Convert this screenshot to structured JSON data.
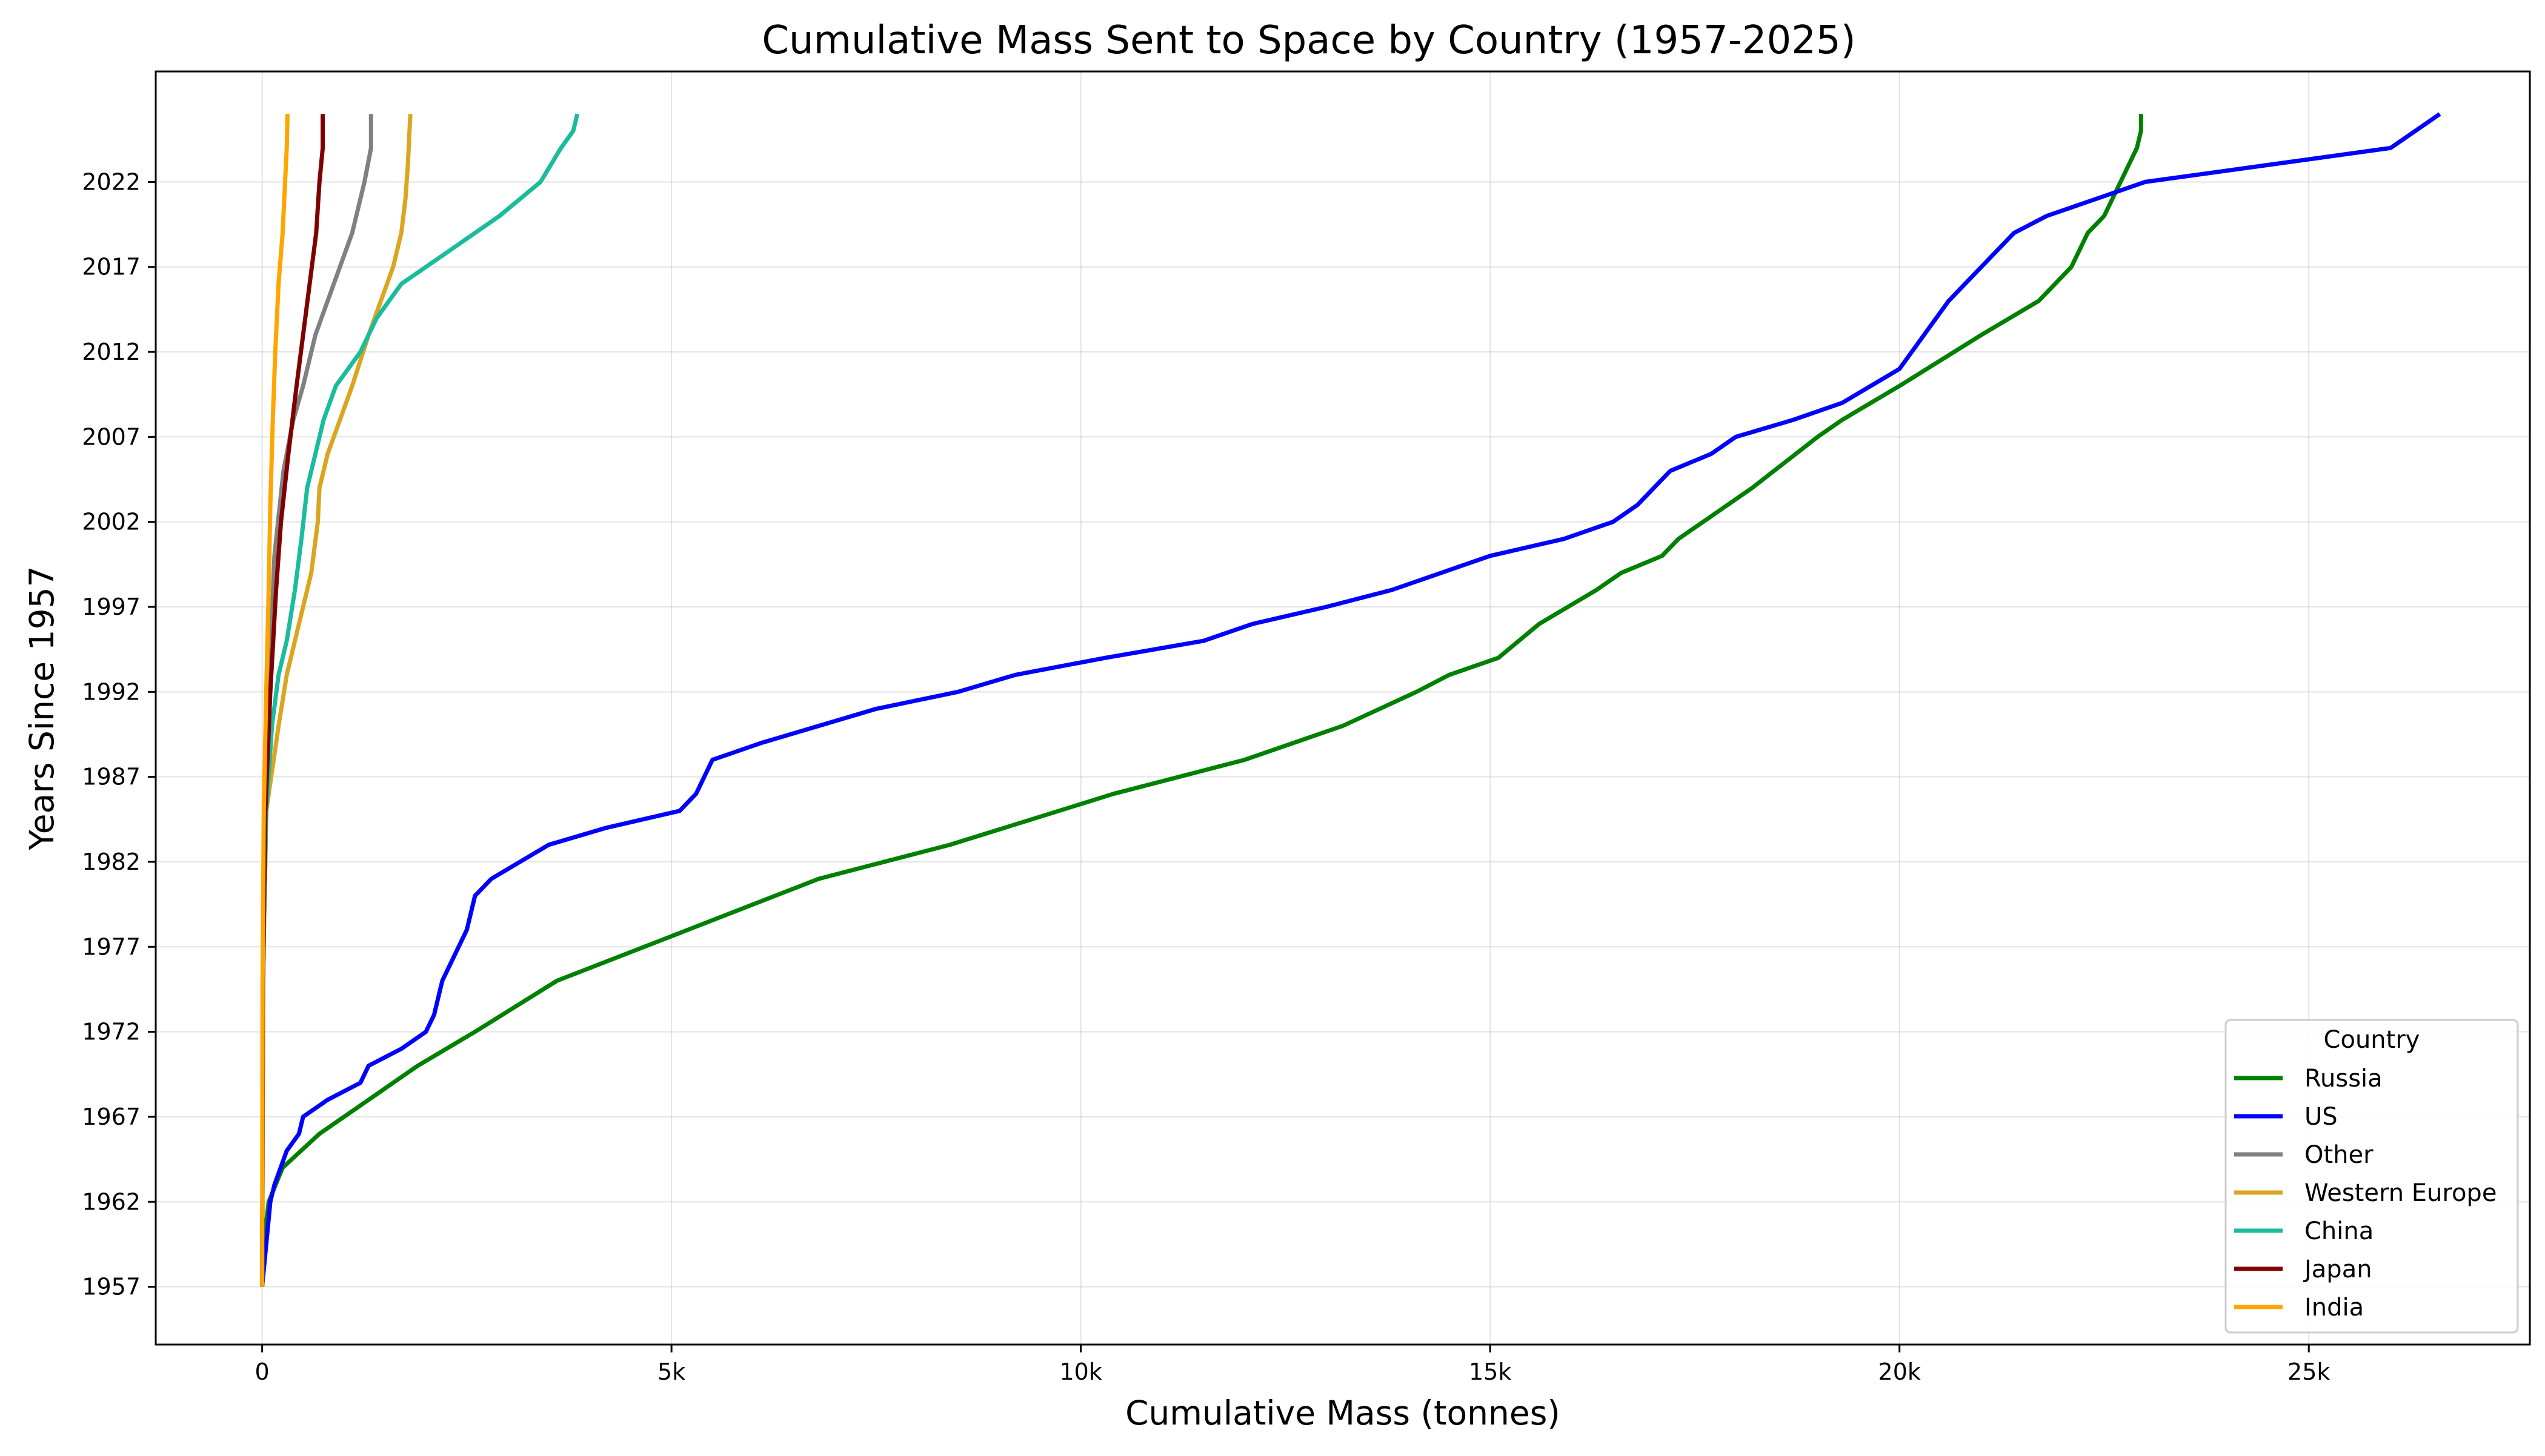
{
  "chart_data": {
    "type": "line",
    "title": "Cumulative Mass Sent to Space by Country (1957-2025)",
    "xlabel": "Cumulative Mass (tonnes)",
    "ylabel": "Years Since 1957",
    "xlim": [
      -1300,
      27700
    ],
    "ylim": [
      1953.6,
      2028.5
    ],
    "x_ticks": [
      {
        "value": 0,
        "label": "0"
      },
      {
        "value": 5000,
        "label": "5k"
      },
      {
        "value": 10000,
        "label": "10k"
      },
      {
        "value": 15000,
        "label": "15k"
      },
      {
        "value": 20000,
        "label": "20k"
      },
      {
        "value": 25000,
        "label": "25k"
      }
    ],
    "y_ticks": [
      {
        "value": 1957,
        "label": "1957"
      },
      {
        "value": 1962,
        "label": "1962"
      },
      {
        "value": 1967,
        "label": "1967"
      },
      {
        "value": 1972,
        "label": "1972"
      },
      {
        "value": 1977,
        "label": "1977"
      },
      {
        "value": 1982,
        "label": "1982"
      },
      {
        "value": 1987,
        "label": "1987"
      },
      {
        "value": 1992,
        "label": "1992"
      },
      {
        "value": 1997,
        "label": "1997"
      },
      {
        "value": 2002,
        "label": "2002"
      },
      {
        "value": 2007,
        "label": "2007"
      },
      {
        "value": 2012,
        "label": "2012"
      },
      {
        "value": 2017,
        "label": "2017"
      },
      {
        "value": 2022,
        "label": "2022"
      }
    ],
    "grid": true,
    "legend": {
      "title": "Country",
      "position": "lower-right"
    },
    "series": [
      {
        "name": "Russia",
        "color": "#008000",
        "points": [
          [
            0,
            1957
          ],
          [
            30,
            1960
          ],
          [
            80,
            1962
          ],
          [
            250,
            1964
          ],
          [
            700,
            1966
          ],
          [
            1300,
            1968
          ],
          [
            1900,
            1970
          ],
          [
            2600,
            1972
          ],
          [
            3600,
            1975
          ],
          [
            5200,
            1978
          ],
          [
            6800,
            1981
          ],
          [
            8400,
            1983
          ],
          [
            10400,
            1986
          ],
          [
            12000,
            1988
          ],
          [
            13200,
            1990
          ],
          [
            14100,
            1992
          ],
          [
            14500,
            1993
          ],
          [
            15100,
            1994
          ],
          [
            15600,
            1996
          ],
          [
            16300,
            1998
          ],
          [
            16600,
            1999
          ],
          [
            17100,
            2000
          ],
          [
            17300,
            2001
          ],
          [
            17600,
            2002
          ],
          [
            18200,
            2004
          ],
          [
            19000,
            2007
          ],
          [
            19300,
            2008
          ],
          [
            20000,
            2010
          ],
          [
            21000,
            2013
          ],
          [
            21700,
            2015
          ],
          [
            21900,
            2016
          ],
          [
            22100,
            2017
          ],
          [
            22300,
            2019
          ],
          [
            22500,
            2020
          ],
          [
            22700,
            2022
          ],
          [
            22900,
            2024
          ],
          [
            22950,
            2025
          ],
          [
            22950,
            2026
          ]
        ]
      },
      {
        "name": "US",
        "color": "#0000ff",
        "points": [
          [
            0,
            1957
          ],
          [
            80,
            1961
          ],
          [
            100,
            1962
          ],
          [
            150,
            1963
          ],
          [
            300,
            1965
          ],
          [
            450,
            1966
          ],
          [
            500,
            1967
          ],
          [
            800,
            1968
          ],
          [
            1200,
            1969
          ],
          [
            1300,
            1970
          ],
          [
            1700,
            1971
          ],
          [
            2000,
            1972
          ],
          [
            2100,
            1973
          ],
          [
            2200,
            1975
          ],
          [
            2400,
            1977
          ],
          [
            2500,
            1978
          ],
          [
            2600,
            1980
          ],
          [
            2800,
            1981
          ],
          [
            3500,
            1983
          ],
          [
            4200,
            1984
          ],
          [
            5100,
            1985
          ],
          [
            5300,
            1986
          ],
          [
            5400,
            1987
          ],
          [
            5500,
            1988
          ],
          [
            6100,
            1989
          ],
          [
            6800,
            1990
          ],
          [
            7500,
            1991
          ],
          [
            8500,
            1992
          ],
          [
            9200,
            1993
          ],
          [
            10300,
            1994
          ],
          [
            11500,
            1995
          ],
          [
            12100,
            1996
          ],
          [
            13000,
            1997
          ],
          [
            13800,
            1998
          ],
          [
            14400,
            1999
          ],
          [
            15000,
            2000
          ],
          [
            15900,
            2001
          ],
          [
            16500,
            2002
          ],
          [
            16800,
            2003
          ],
          [
            17000,
            2004
          ],
          [
            17200,
            2005
          ],
          [
            17700,
            2006
          ],
          [
            18000,
            2007
          ],
          [
            18700,
            2008
          ],
          [
            19300,
            2009
          ],
          [
            20000,
            2011
          ],
          [
            20300,
            2013
          ],
          [
            20600,
            2015
          ],
          [
            21000,
            2017
          ],
          [
            21400,
            2019
          ],
          [
            21800,
            2020
          ],
          [
            22400,
            2021
          ],
          [
            23000,
            2022
          ],
          [
            24500,
            2023
          ],
          [
            26000,
            2024
          ],
          [
            26300,
            2025
          ],
          [
            26600,
            2026
          ]
        ]
      },
      {
        "name": "Other",
        "color": "#808080",
        "points": [
          [
            0,
            1957
          ],
          [
            10,
            1975
          ],
          [
            30,
            1985
          ],
          [
            80,
            1992
          ],
          [
            150,
            2000
          ],
          [
            260,
            2005
          ],
          [
            380,
            2008
          ],
          [
            500,
            2010
          ],
          [
            650,
            2013
          ],
          [
            800,
            2015
          ],
          [
            950,
            2017
          ],
          [
            1100,
            2019
          ],
          [
            1250,
            2022
          ],
          [
            1330,
            2024
          ],
          [
            1330,
            2026
          ]
        ]
      },
      {
        "name": "Western Europe",
        "color": "#daa520",
        "points": [
          [
            0,
            1957
          ],
          [
            10,
            1975
          ],
          [
            50,
            1985
          ],
          [
            200,
            1990
          ],
          [
            300,
            1993
          ],
          [
            450,
            1996
          ],
          [
            600,
            1999
          ],
          [
            680,
            2002
          ],
          [
            700,
            2004
          ],
          [
            800,
            2006
          ],
          [
            950,
            2008
          ],
          [
            1100,
            2010
          ],
          [
            1300,
            2013
          ],
          [
            1450,
            2015
          ],
          [
            1600,
            2017
          ],
          [
            1700,
            2019
          ],
          [
            1750,
            2021
          ],
          [
            1780,
            2023
          ],
          [
            1800,
            2025
          ],
          [
            1810,
            2026
          ]
        ]
      },
      {
        "name": "China",
        "color": "#1abc9c",
        "points": [
          [
            0,
            1957
          ],
          [
            10,
            1975
          ],
          [
            50,
            1985
          ],
          [
            120,
            1990
          ],
          [
            200,
            1993
          ],
          [
            300,
            1995
          ],
          [
            400,
            1998
          ],
          [
            480,
            2001
          ],
          [
            550,
            2004
          ],
          [
            650,
            2006
          ],
          [
            750,
            2008
          ],
          [
            900,
            2010
          ],
          [
            1200,
            2012
          ],
          [
            1400,
            2014
          ],
          [
            1700,
            2016
          ],
          [
            2300,
            2018
          ],
          [
            2900,
            2020
          ],
          [
            3400,
            2022
          ],
          [
            3650,
            2024
          ],
          [
            3800,
            2025
          ],
          [
            3850,
            2026
          ]
        ]
      },
      {
        "name": "Japan",
        "color": "#800000",
        "points": [
          [
            0,
            1957
          ],
          [
            10,
            1975
          ],
          [
            40,
            1985
          ],
          [
            100,
            1992
          ],
          [
            170,
            1998
          ],
          [
            230,
            2002
          ],
          [
            320,
            2006
          ],
          [
            420,
            2010
          ],
          [
            500,
            2013
          ],
          [
            580,
            2016
          ],
          [
            660,
            2019
          ],
          [
            700,
            2022
          ],
          [
            740,
            2024
          ],
          [
            740,
            2026
          ]
        ]
      },
      {
        "name": "India",
        "color": "#ffa500",
        "points": [
          [
            0,
            1957
          ],
          [
            5,
            1975
          ],
          [
            20,
            1985
          ],
          [
            50,
            1992
          ],
          [
            80,
            1998
          ],
          [
            100,
            2003
          ],
          [
            130,
            2008
          ],
          [
            160,
            2012
          ],
          [
            200,
            2016
          ],
          [
            250,
            2019
          ],
          [
            280,
            2022
          ],
          [
            300,
            2024
          ],
          [
            310,
            2026
          ]
        ]
      }
    ]
  }
}
